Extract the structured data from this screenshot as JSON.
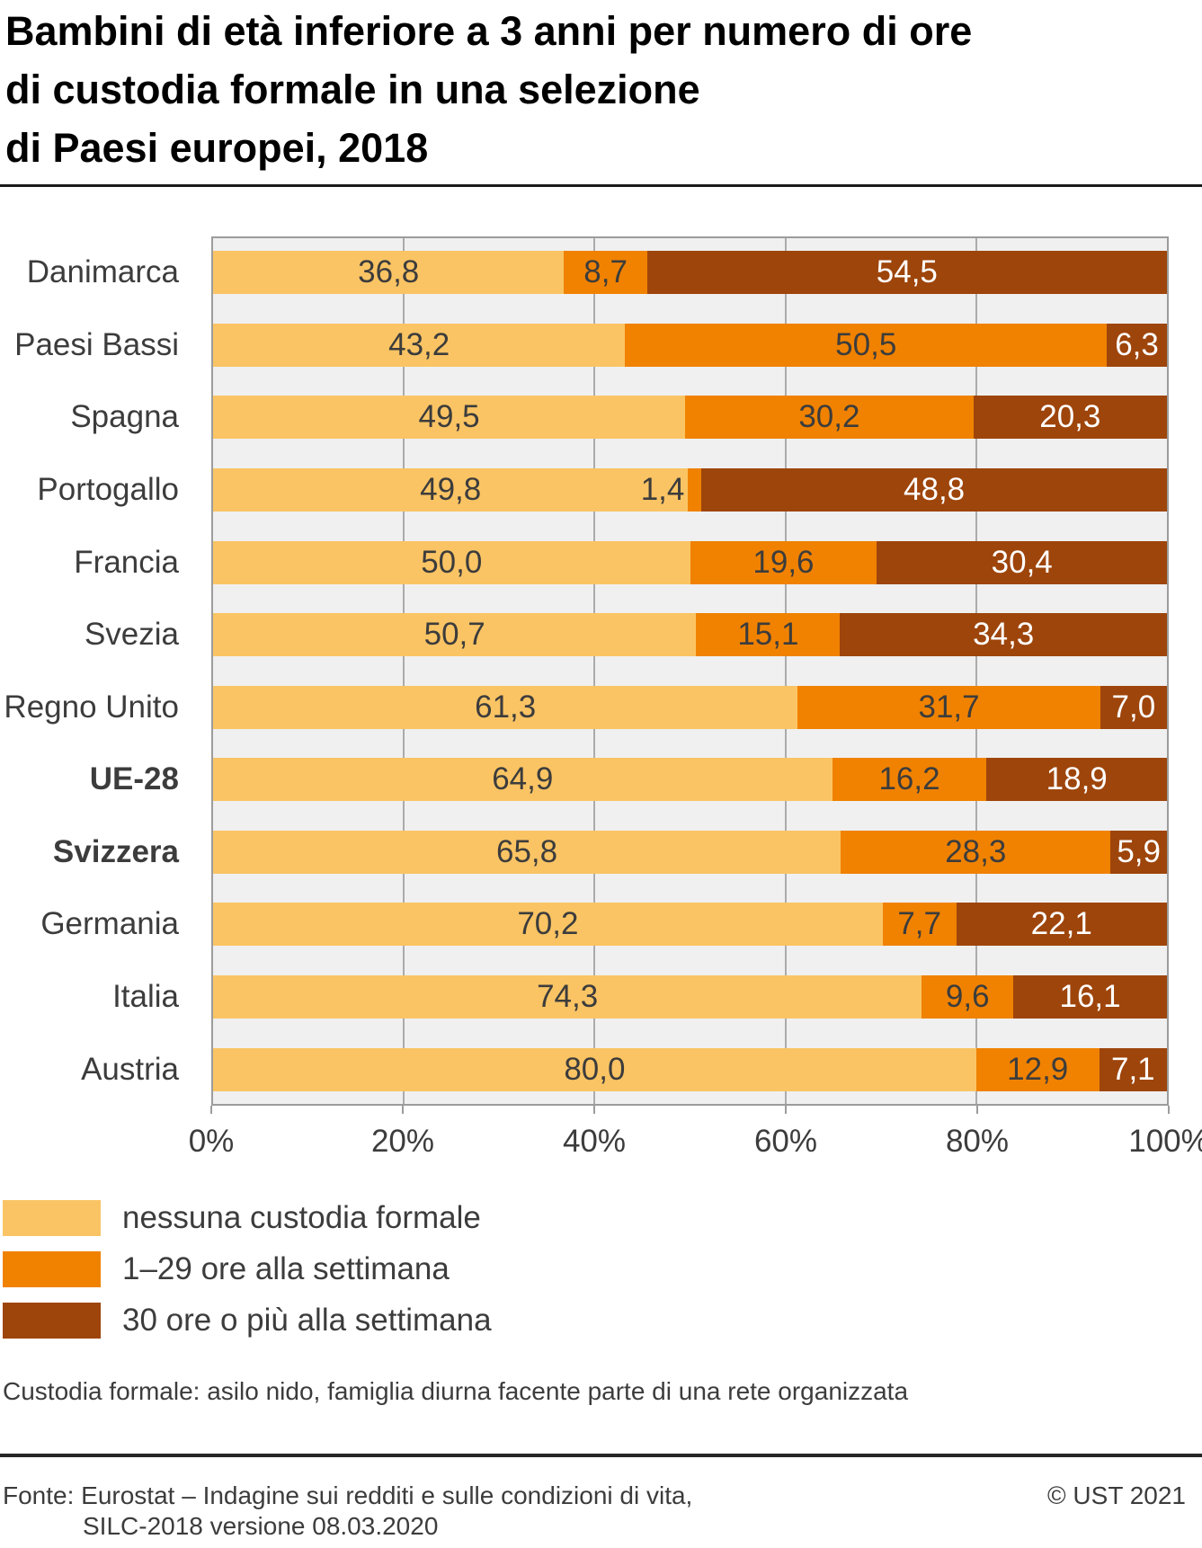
{
  "chart_data": {
    "type": "bar",
    "orientation": "horizontal",
    "stacked": true,
    "title": "Bambini di età inferiore a 3 anni per numero di ore\ndi custodia formale in una selezione\ndi Paesi europei, 2018",
    "unit": "percent",
    "categories": [
      "Danimarca",
      "Paesi Bassi",
      "Spagna",
      "Portogallo",
      "Francia",
      "Svezia",
      "Regno Unito",
      "UE-28",
      "Svizzera",
      "Germania",
      "Italia",
      "Austria"
    ],
    "emphasized_categories": [
      "UE-28",
      "Svizzera"
    ],
    "series": [
      {
        "name": "nessuna custodia formale",
        "color": "#FAC464",
        "label_color": "#3C3C3C",
        "values": [
          36.8,
          43.2,
          49.5,
          49.8,
          50.0,
          50.7,
          61.3,
          64.9,
          65.8,
          70.2,
          74.3,
          80.0
        ]
      },
      {
        "name": "1–29 ore alla settimana",
        "color": "#F08200",
        "label_color": "#3C3C3C",
        "values": [
          8.7,
          50.5,
          30.2,
          1.4,
          19.6,
          15.1,
          31.7,
          16.2,
          28.3,
          7.7,
          9.6,
          12.9
        ]
      },
      {
        "name": "30 ore o più alla settimana",
        "color": "#9E450B",
        "label_color": "#FFFFFF",
        "values": [
          54.5,
          6.3,
          20.3,
          48.8,
          30.4,
          34.3,
          7.0,
          18.9,
          5.9,
          22.1,
          16.1,
          7.1
        ]
      }
    ],
    "x_axis": {
      "tick_labels": [
        "0%",
        "20%",
        "40%",
        "60%",
        "80%",
        "100%"
      ],
      "tick_values": [
        0,
        20,
        40,
        60,
        80,
        100
      ],
      "gridline_values": [
        20,
        40,
        60,
        80
      ],
      "range": [
        0,
        100
      ]
    },
    "decimal_separator": ",",
    "legend_position": "bottom-left",
    "plot_background": "#F0F0F0"
  },
  "footnote": "Custodia formale: asilo nido, famiglia diurna facente parte di una rete organizzata",
  "footer": {
    "source_line1": "Fonte: Eurostat – Indagine sui redditi e sulle condizioni di vita,",
    "source_line2": "SILC-2018 versione 08.03.2020",
    "copyright": "© UST 2021"
  }
}
